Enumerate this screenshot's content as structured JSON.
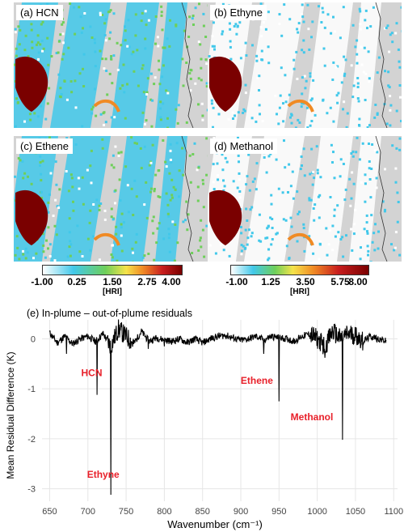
{
  "panels": [
    {
      "title": "(a) HCN"
    },
    {
      "title": "(b) Ethyne"
    },
    {
      "title": "(c) Ethene"
    },
    {
      "title": "(d) Methanol"
    }
  ],
  "colorbars": [
    {
      "ticks": [
        "-1.00",
        "0.25",
        "1.50",
        "2.75",
        "4.00"
      ],
      "unit": "[HRI]",
      "range": [
        -1.0,
        4.0
      ]
    },
    {
      "ticks": [
        "-1.00",
        "1.25",
        "3.50",
        "5.75",
        "8.00"
      ],
      "unit": "[HRI]",
      "range": [
        -1.0,
        8.0
      ]
    }
  ],
  "colors": {
    "land_gray": "#d3d3d3",
    "low": "#ffffff",
    "cyan": "#41c8ea",
    "green": "#6ecf5a",
    "yellow": "#f5e34a",
    "orange": "#f08a24",
    "red": "#c81e1e",
    "dark_red": "#7a0000",
    "annotation_red": "#e8202a"
  },
  "chart_data": {
    "type": "line",
    "title": "(e) In-plume – out-of-plume residuals",
    "xlabel": "Wavenumber (cm⁻¹)",
    "ylabel": "Mean Residual Difference (K)",
    "xlim": [
      640,
      1105
    ],
    "ylim": [
      -3.25,
      0.38
    ],
    "xticks": [
      650,
      700,
      750,
      800,
      850,
      900,
      950,
      1000,
      1050,
      1100
    ],
    "yticks": [
      0,
      -1,
      -2,
      -3
    ],
    "grid": true,
    "baseline_noise_points": [
      [
        650,
        0.12
      ],
      [
        660,
        -0.08
      ],
      [
        670,
        0.05
      ],
      [
        680,
        -0.1
      ],
      [
        690,
        0.0
      ],
      [
        700,
        0.05
      ],
      [
        710,
        -0.05
      ],
      [
        720,
        0.1
      ],
      [
        730,
        -0.15
      ],
      [
        740,
        0.2
      ],
      [
        750,
        0.05
      ],
      [
        760,
        -0.1
      ],
      [
        770,
        0.15
      ],
      [
        780,
        -0.05
      ],
      [
        790,
        0.02
      ],
      [
        800,
        -0.02
      ],
      [
        810,
        -0.05
      ],
      [
        820,
        0.0
      ],
      [
        830,
        -0.08
      ],
      [
        840,
        0.0
      ],
      [
        850,
        -0.08
      ],
      [
        860,
        0.0
      ],
      [
        870,
        0.05
      ],
      [
        880,
        0.07
      ],
      [
        890,
        0.02
      ],
      [
        900,
        -0.03
      ],
      [
        910,
        0.0
      ],
      [
        920,
        0.05
      ],
      [
        930,
        -0.02
      ],
      [
        940,
        0.05
      ],
      [
        950,
        0.02
      ],
      [
        960,
        0.0
      ],
      [
        970,
        -0.05
      ],
      [
        980,
        0.05
      ],
      [
        990,
        0.1
      ],
      [
        1000,
        0.0
      ],
      [
        1010,
        -0.15
      ],
      [
        1020,
        0.15
      ],
      [
        1030,
        0.0
      ],
      [
        1040,
        0.1
      ],
      [
        1050,
        0.08
      ],
      [
        1060,
        -0.05
      ],
      [
        1070,
        0.05
      ],
      [
        1080,
        0.0
      ],
      [
        1090,
        -0.05
      ]
    ],
    "spikes": [
      {
        "x": 672,
        "y": -0.3
      },
      {
        "x": 712,
        "y": -1.12
      },
      {
        "x": 730,
        "y": -3.12
      },
      {
        "x": 779,
        "y": -0.2
      },
      {
        "x": 800,
        "y": -0.15
      },
      {
        "x": 930,
        "y": -0.3
      },
      {
        "x": 950,
        "y": -1.25
      },
      {
        "x": 1010,
        "y": -0.38
      },
      {
        "x": 1033,
        "y": -2.02
      }
    ],
    "annotations": [
      {
        "text": "HCN",
        "x": 705,
        "y": -0.75
      },
      {
        "text": "Ethyne",
        "x": 720,
        "y": -2.78
      },
      {
        "text": "Ethene",
        "x": 921,
        "y": -0.9
      },
      {
        "text": "Methanol",
        "x": 993,
        "y": -1.63
      }
    ]
  }
}
